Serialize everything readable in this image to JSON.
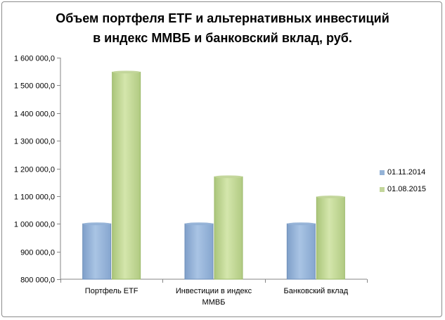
{
  "chart_data": {
    "type": "bar",
    "title_lines": [
      "Объем портфеля ETF и альтернативных  инвестиций",
      "в индекс ММВБ и банковский  вклад,  руб."
    ],
    "categories": [
      [
        "Портфель ETF"
      ],
      [
        "Инвестиции в индекс",
        "ММВБ"
      ],
      [
        "Банковский вклад"
      ]
    ],
    "series": [
      {
        "name": "01.11.2014",
        "values": [
          1000000,
          1000000,
          1000000
        ],
        "color": "#95b3d7",
        "edge": "#6f8fb8"
      },
      {
        "name": "01.08.2015",
        "values": [
          1548000,
          1170000,
          1097000
        ],
        "color": "#c3d69b",
        "edge": "#9bb86a"
      }
    ],
    "y_ticks": [
      {
        "value": 800000,
        "label": "800 000,0"
      },
      {
        "value": 900000,
        "label": "900 000,0"
      },
      {
        "value": 1000000,
        "label": "1 000 000,0"
      },
      {
        "value": 1100000,
        "label": "1 100 000,0"
      },
      {
        "value": 1200000,
        "label": "1 200 000,0"
      },
      {
        "value": 1300000,
        "label": "1 300 000,0"
      },
      {
        "value": 1400000,
        "label": "1 400 000,0"
      },
      {
        "value": 1500000,
        "label": "1 500 000,0"
      },
      {
        "value": 1600000,
        "label": "1 600 000,0"
      }
    ],
    "ylim": [
      800000,
      1600000
    ],
    "grid": false,
    "legend_position": "right"
  }
}
